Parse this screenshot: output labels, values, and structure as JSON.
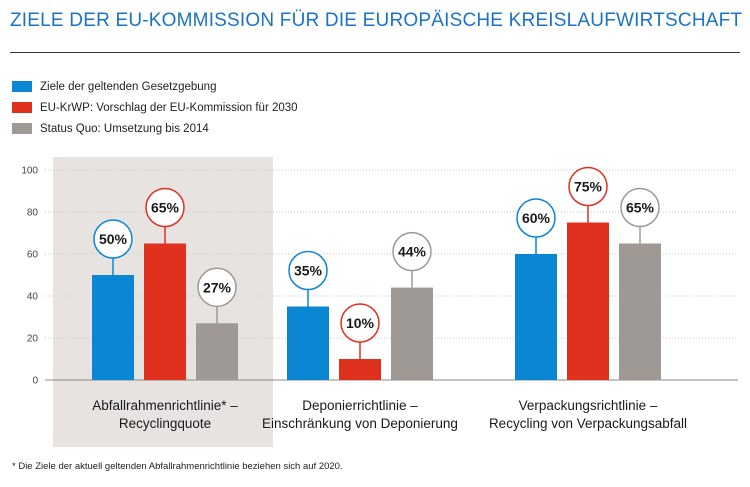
{
  "header": {
    "title": "ZIELE DER EU-KOMMISSION FÜR DIE EUROPÄISCHE KREISLAUFWIRTSCHAFT"
  },
  "footnote": "* Die Ziele der aktuell geltenden Abfallrahmenrichtlinie beziehen sich auf 2020.",
  "chart_data": {
    "type": "bar",
    "title": "ZIELE DER EU-KOMMISSION FÜR DIE EUROPÄISCHE KREISLAUFWIRTSCHAFT",
    "ylim": [
      0,
      100
    ],
    "yticks": [
      0,
      20,
      40,
      60,
      80,
      100
    ],
    "grid": true,
    "legend_position": "top-left",
    "categories": [
      [
        "Abfallrahmenrichtlinie* –",
        "Recyclingquote"
      ],
      [
        "Deponierrichtlinie –",
        "Einschränkung von Deponierung"
      ],
      [
        "Verpackungsrichtlinie –",
        "Recycling von Verpackungsabfall"
      ]
    ],
    "highlighted_category": 0,
    "series": [
      {
        "name": "Ziele der geltenden Gesetzgebung",
        "color": "#0a86d2",
        "values": [
          50,
          35,
          60
        ],
        "labels": [
          "50%",
          "35%",
          "60%"
        ]
      },
      {
        "name": "EU-KrWP: Vorschlag der EU-Kommission für 2030",
        "color": "#e0301e",
        "values": [
          65,
          10,
          75
        ],
        "labels": [
          "65%",
          "10%",
          "75%"
        ]
      },
      {
        "name": "Status Quo: Umsetzung bis 2014",
        "color": "#9e9995",
        "values": [
          27,
          44,
          65
        ],
        "labels": [
          "27%",
          "44%",
          "65%"
        ]
      }
    ]
  }
}
